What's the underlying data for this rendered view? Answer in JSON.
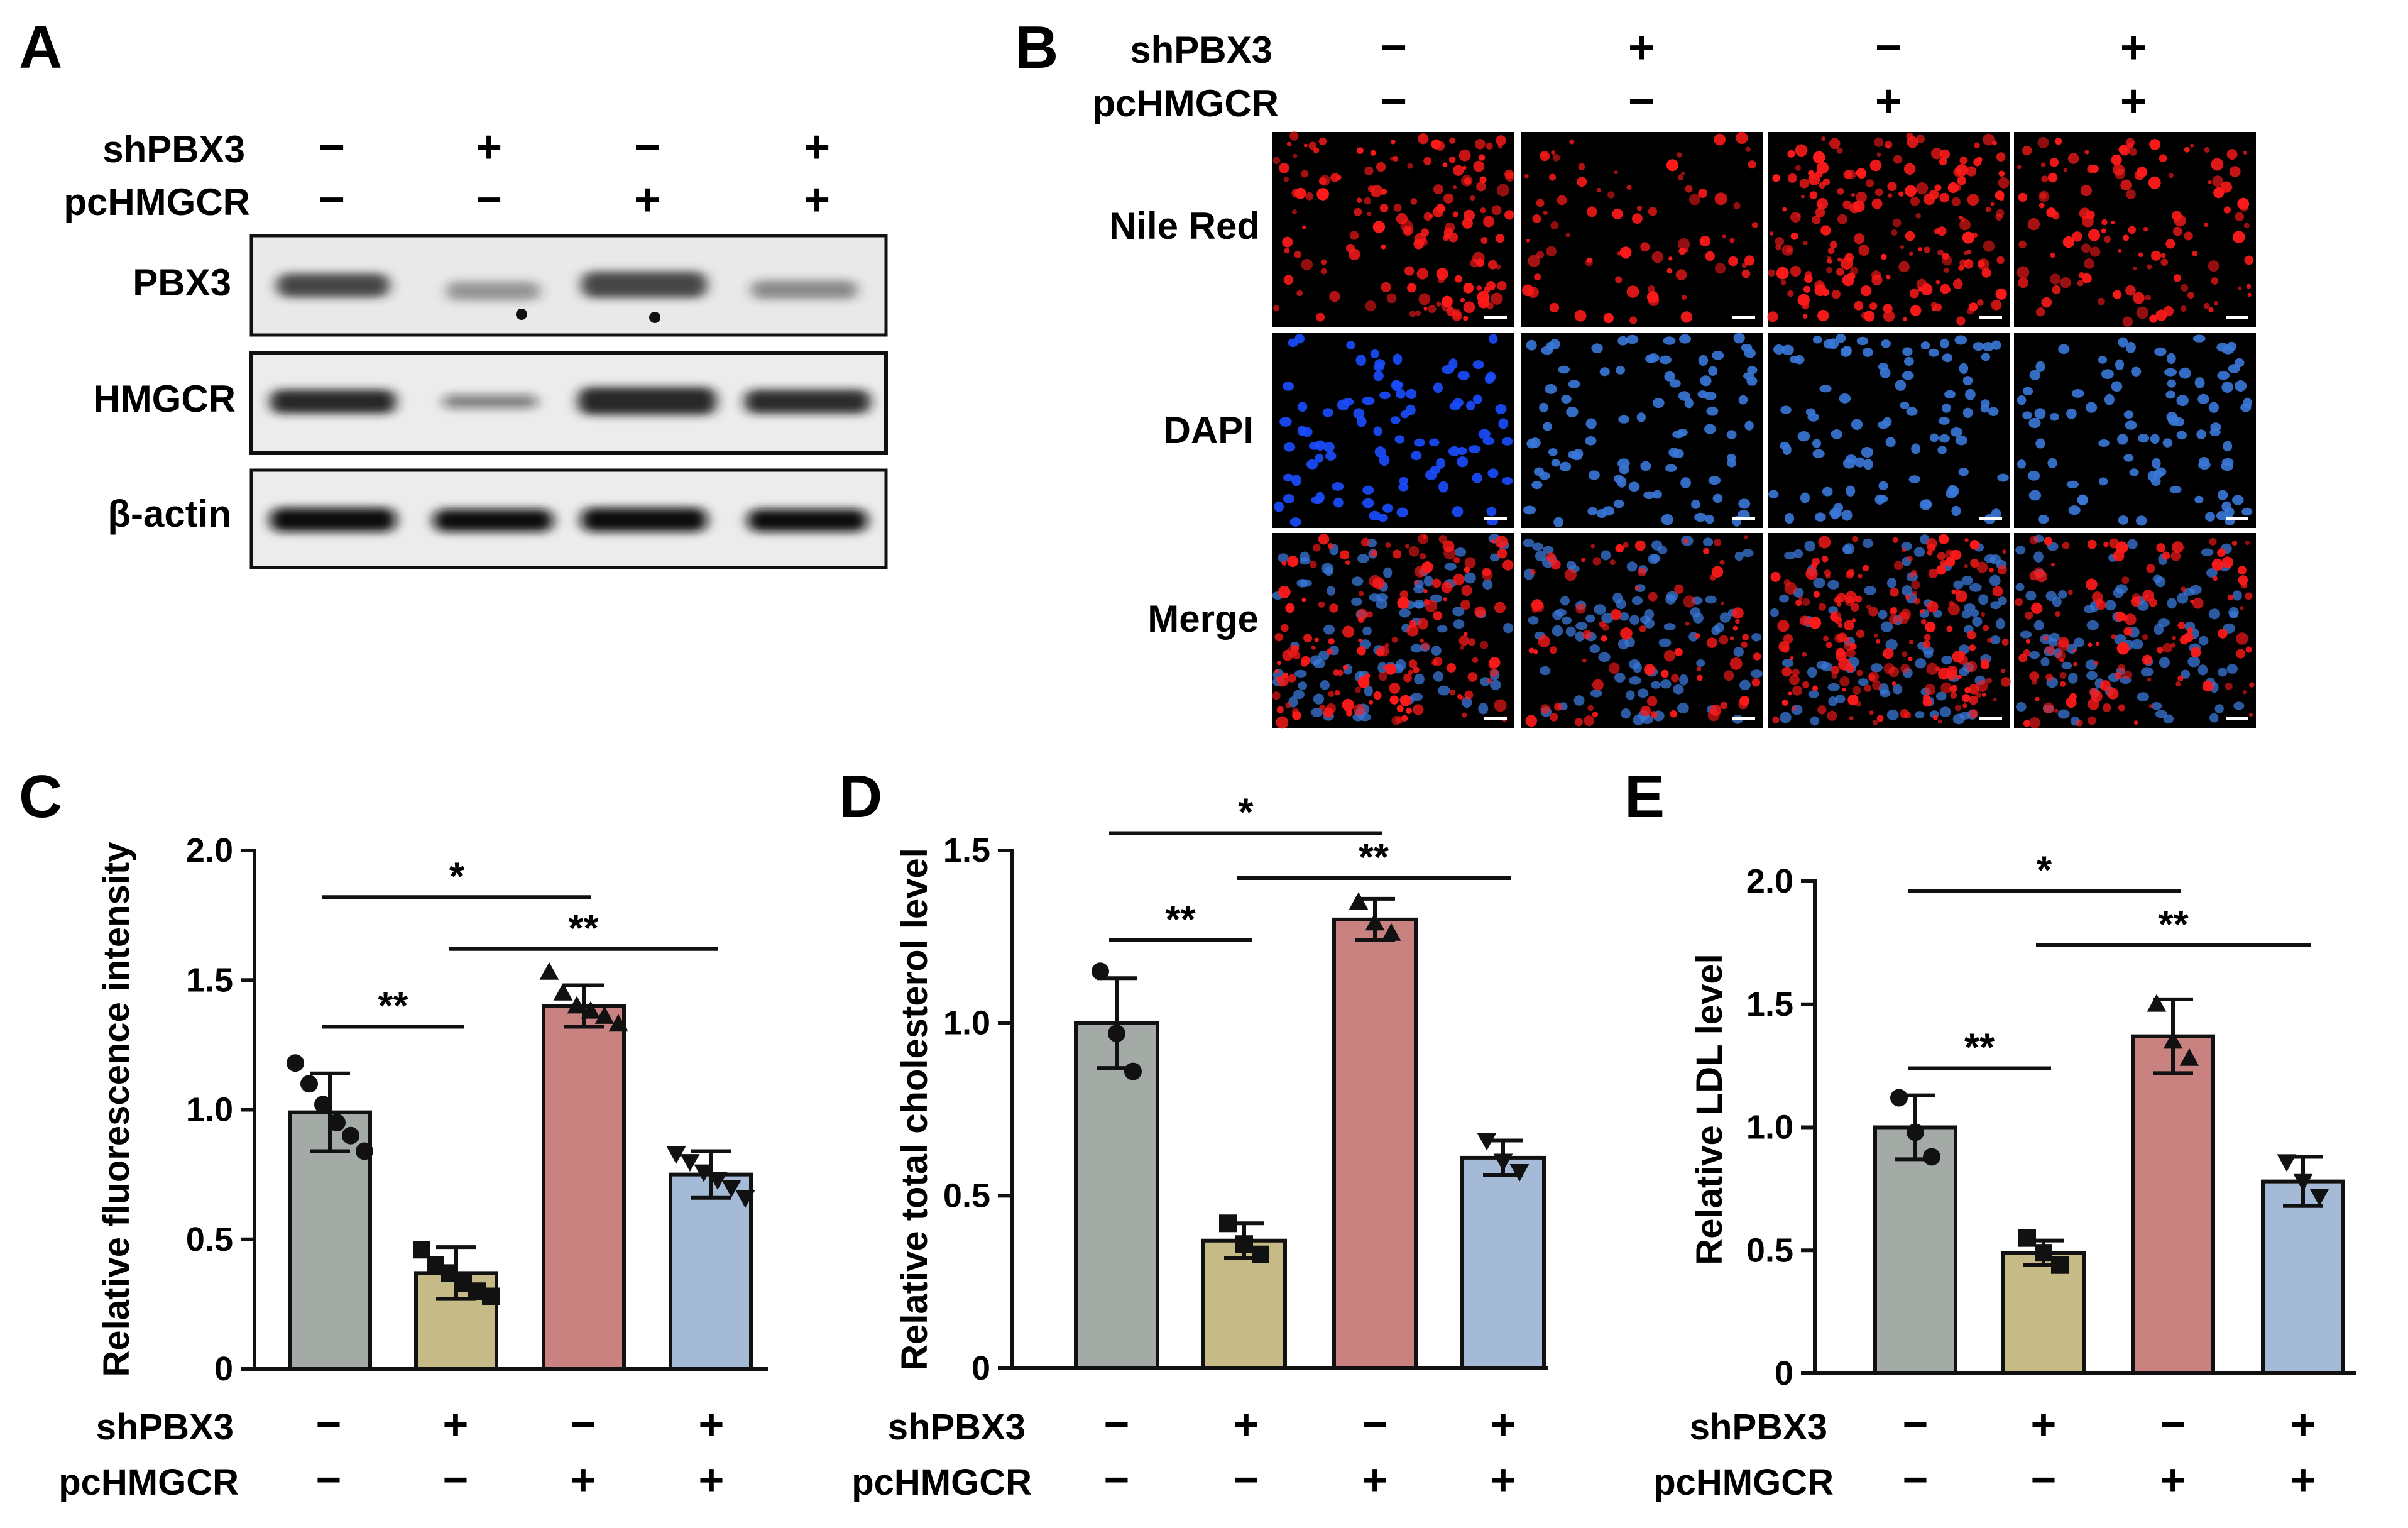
{
  "panels": {
    "A": {
      "letter": "A",
      "row_labels": [
        "shPBX3",
        "pcHMGCR"
      ],
      "signs": [
        [
          "−",
          "+",
          "−",
          "+"
        ],
        [
          "−",
          "−",
          "+",
          "+"
        ]
      ],
      "blots": [
        "PBX3",
        "HMGCR",
        "β-actin"
      ]
    },
    "B": {
      "letter": "B",
      "row_labels": [
        "shPBX3",
        "pcHMGCR"
      ],
      "signs": [
        [
          "−",
          "+",
          "−",
          "+"
        ],
        [
          "−",
          "−",
          "+",
          "+"
        ]
      ],
      "channels": [
        "Nile Red",
        "DAPI",
        "Merge"
      ],
      "colors": {
        "nile_red": "#ff1a1a",
        "dapi": "#1a4cff",
        "dapi_soft": "#3a78d8"
      }
    }
  },
  "chart_data": [
    {
      "letter": "C",
      "type": "bar",
      "ylabel": "Relative fluorescence intensity",
      "ylim": [
        0,
        2.0
      ],
      "yticks": [
        "0",
        "0.5",
        "1.0",
        "1.5",
        "2.0"
      ],
      "ytick_values": [
        0,
        0.5,
        1.0,
        1.5,
        2.0
      ],
      "values": [
        0.99,
        0.37,
        1.4,
        0.75
      ],
      "errors": [
        0.15,
        0.1,
        0.08,
        0.09
      ],
      "points": [
        [
          1.18,
          1.1,
          1.02,
          0.95,
          0.9,
          0.84
        ],
        [
          0.46,
          0.4,
          0.37,
          0.33,
          0.3,
          0.28
        ],
        [
          1.53,
          1.45,
          1.4,
          1.38,
          1.36,
          1.33
        ],
        [
          0.83,
          0.8,
          0.76,
          0.73,
          0.7,
          0.66
        ]
      ],
      "markers": [
        "circle",
        "square",
        "triangle",
        "triangle-down"
      ],
      "sig": [
        {
          "from": 0,
          "to": 2,
          "label": "*",
          "y": 1.82
        },
        {
          "from": 0,
          "to": 1,
          "label": "**",
          "y": 1.32
        },
        {
          "from": 1,
          "to": 3,
          "label": "**",
          "y": 1.62
        }
      ],
      "row_labels": [
        "shPBX3",
        "pcHMGCR"
      ],
      "signs": [
        [
          "−",
          "+",
          "−",
          "+"
        ],
        [
          "−",
          "−",
          "+",
          "+"
        ]
      ]
    },
    {
      "letter": "D",
      "type": "bar",
      "ylabel": "Relative total cholesterol level",
      "ylim": [
        0,
        1.5
      ],
      "yticks": [
        "0",
        "0.5",
        "1.0",
        "1.5"
      ],
      "ytick_values": [
        0,
        0.5,
        1.0,
        1.5
      ],
      "values": [
        1.0,
        0.37,
        1.3,
        0.61
      ],
      "errors": [
        0.13,
        0.05,
        0.06,
        0.05
      ],
      "points": [
        [
          1.15,
          0.97,
          0.86
        ],
        [
          0.42,
          0.36,
          0.33
        ],
        [
          1.35,
          1.29,
          1.26
        ],
        [
          0.66,
          0.6,
          0.57
        ]
      ],
      "markers": [
        "circle",
        "square",
        "triangle",
        "triangle-down"
      ],
      "sig": [
        {
          "from": 0,
          "to": 2,
          "label": "*",
          "y": 1.55
        },
        {
          "from": 0,
          "to": 1,
          "label": "**",
          "y": 1.24
        },
        {
          "from": 1,
          "to": 3,
          "label": "**",
          "y": 1.42
        }
      ],
      "row_labels": [
        "shPBX3",
        "pcHMGCR"
      ],
      "signs": [
        [
          "−",
          "+",
          "−",
          "+"
        ],
        [
          "−",
          "−",
          "+",
          "+"
        ]
      ]
    },
    {
      "letter": "E",
      "type": "bar",
      "ylabel": "Relative LDL level",
      "ylim": [
        0,
        2.0
      ],
      "yticks": [
        "0",
        "0.5",
        "1.0",
        "1.5",
        "2.0"
      ],
      "ytick_values": [
        0,
        0.5,
        1.0,
        1.5,
        2.0
      ],
      "values": [
        1.0,
        0.49,
        1.37,
        0.78
      ],
      "errors": [
        0.13,
        0.05,
        0.15,
        0.1
      ],
      "points": [
        [
          1.12,
          0.98,
          0.88
        ],
        [
          0.55,
          0.49,
          0.44
        ],
        [
          1.5,
          1.35,
          1.28
        ],
        [
          0.86,
          0.78,
          0.72
        ]
      ],
      "markers": [
        "circle",
        "square",
        "triangle",
        "triangle-down"
      ],
      "sig": [
        {
          "from": 0,
          "to": 2,
          "label": "*",
          "y": 1.96
        },
        {
          "from": 0,
          "to": 1,
          "label": "**",
          "y": 1.24
        },
        {
          "from": 1,
          "to": 3,
          "label": "**",
          "y": 1.74
        }
      ],
      "row_labels": [
        "shPBX3",
        "pcHMGCR"
      ],
      "signs": [
        [
          "−",
          "+",
          "−",
          "+"
        ],
        [
          "−",
          "−",
          "+",
          "+"
        ]
      ]
    }
  ],
  "bar_colors": [
    "#a4aba6",
    "#c6bb87",
    "#c98280",
    "#a5bad6"
  ]
}
